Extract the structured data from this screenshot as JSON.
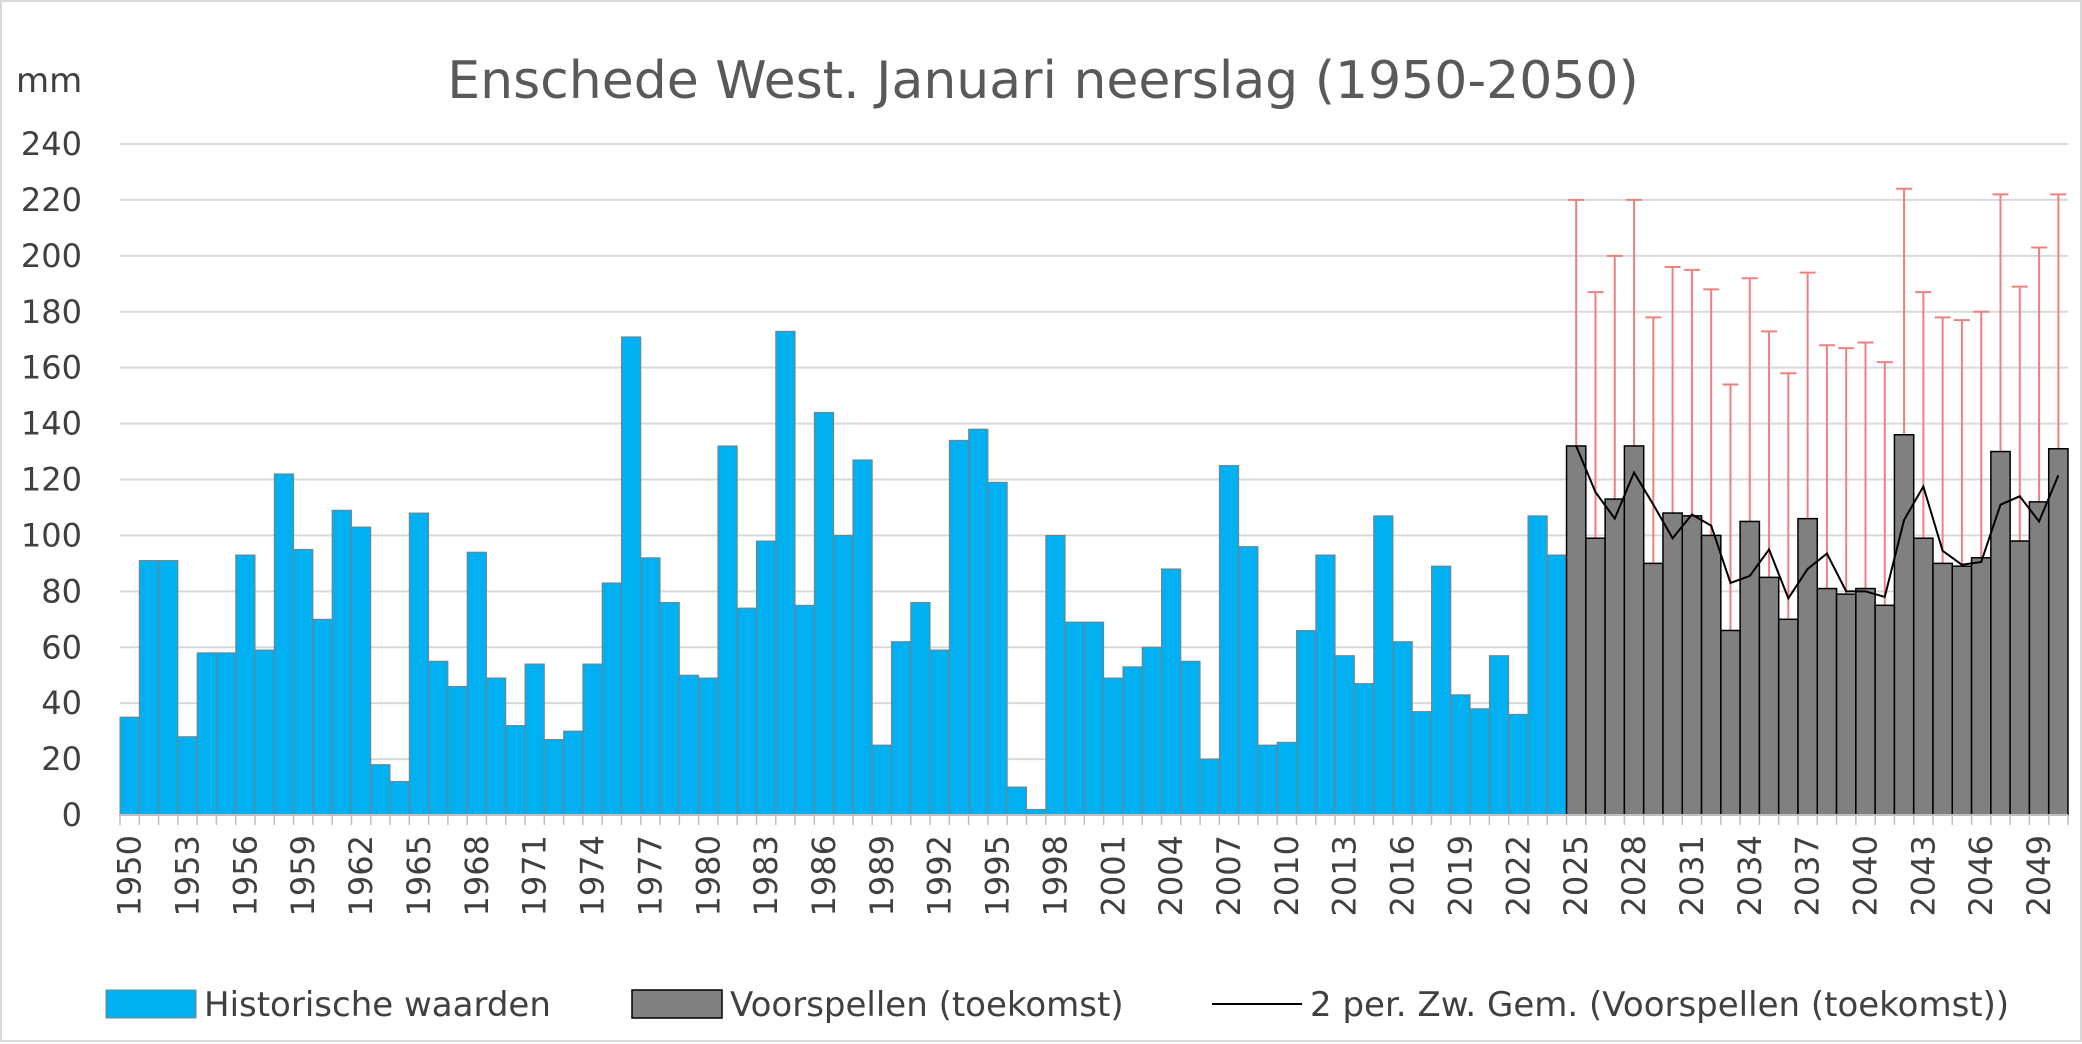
{
  "chart_data": {
    "type": "bar",
    "title": "Enschede West. Januari neerslag (1950-2050)",
    "ylabel": "mm",
    "xlabel": "",
    "ylim": [
      0,
      240
    ],
    "yticks": [
      0,
      20,
      40,
      60,
      80,
      100,
      120,
      140,
      160,
      180,
      200,
      220,
      240
    ],
    "grid": true,
    "legend_position": "bottom",
    "x_tick_labels": [
      "1950",
      "1953",
      "1956",
      "1959",
      "1962",
      "1965",
      "1968",
      "1971",
      "1974",
      "1977",
      "1980",
      "1983",
      "1986",
      "1989",
      "1992",
      "1995",
      "1998",
      "2001",
      "2004",
      "2007",
      "2010",
      "2013",
      "2016",
      "2019",
      "2022",
      "2025",
      "2028",
      "2031",
      "2034",
      "2037",
      "2040",
      "2043",
      "2046",
      "2049"
    ],
    "series": [
      {
        "name": "Historische waarden",
        "color": "#00b0f0",
        "start_year": 1950,
        "values": [
          35,
          91,
          91,
          28,
          58,
          58,
          93,
          59,
          122,
          95,
          70,
          109,
          103,
          18,
          12,
          108,
          55,
          46,
          94,
          49,
          32,
          54,
          27,
          30,
          54,
          83,
          171,
          92,
          76,
          50,
          49,
          132,
          74,
          98,
          173,
          75,
          144,
          100,
          127,
          25,
          62,
          76,
          59,
          134,
          138,
          119,
          10,
          2,
          100,
          69,
          69,
          49,
          53,
          60,
          88,
          55,
          20,
          125,
          96,
          25,
          26,
          66,
          93,
          57,
          47,
          107,
          62,
          37,
          89,
          43,
          38,
          57,
          36,
          107,
          93
        ]
      },
      {
        "name": "Voorspellen (toekomst)",
        "color": "#808080",
        "start_year": 2025,
        "values": [
          132,
          99,
          113,
          132,
          90,
          108,
          107,
          100,
          66,
          105,
          85,
          70,
          106,
          81,
          79,
          81,
          75,
          136,
          99,
          90,
          89,
          92,
          130,
          98,
          112,
          131
        ],
        "upper_bounds": [
          220,
          187,
          200,
          220,
          178,
          196,
          195,
          188,
          154,
          192,
          173,
          158,
          194,
          168,
          167,
          169,
          162,
          224,
          187,
          178,
          177,
          180,
          222,
          189,
          203,
          222
        ]
      },
      {
        "name": "2 per. Zw. Gem. (Voorspellen (toekomst))",
        "color": "#000000",
        "start_year": 2025,
        "type": "line",
        "values": [
          132,
          115.5,
          106,
          122.5,
          111,
          99,
          107.5,
          103.5,
          83,
          85.5,
          95,
          77.5,
          88,
          93.5,
          80,
          80,
          78,
          105.5,
          117.5,
          94.5,
          89.5,
          90.5,
          111,
          114,
          105,
          121.5
        ]
      }
    ],
    "error_bar_color": "#f08080"
  }
}
